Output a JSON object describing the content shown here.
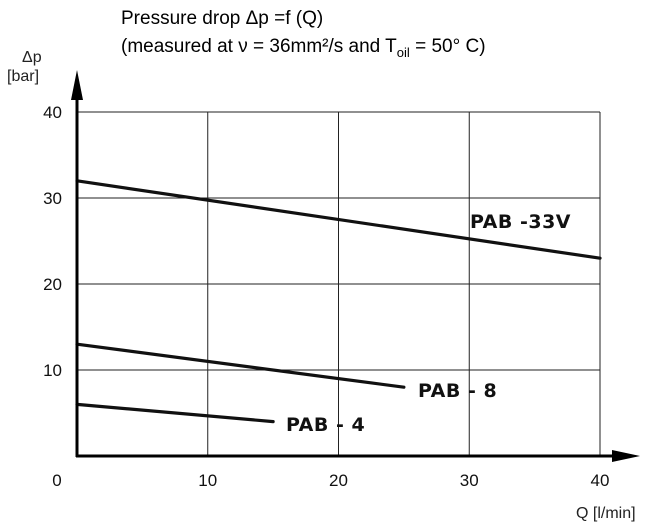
{
  "chart_data": {
    "type": "line",
    "title_line1": "Pressure drop Δp =f (Q)",
    "title_line2_prefix": "(measured at ν = 36mm²/s and T",
    "title_line2_sub": "oil",
    "title_line2_suffix": " = 50° C)",
    "ylabel": "Δp",
    "yunit": "[bar]",
    "xlabel": "Q [l/min]",
    "xlim": [
      0,
      40
    ],
    "ylim": [
      0,
      40
    ],
    "xticks": [
      0,
      10,
      20,
      30,
      40
    ],
    "yticks": [
      10,
      20,
      30,
      40
    ],
    "grid": true,
    "series": [
      {
        "name": "PAB -33V",
        "x": [
          0,
          40
        ],
        "y": [
          32,
          23
        ]
      },
      {
        "name": "PAB - 8",
        "x": [
          0,
          25
        ],
        "y": [
          13,
          8
        ]
      },
      {
        "name": "PAB - 4",
        "x": [
          0,
          15
        ],
        "y": [
          6,
          4
        ]
      }
    ]
  }
}
